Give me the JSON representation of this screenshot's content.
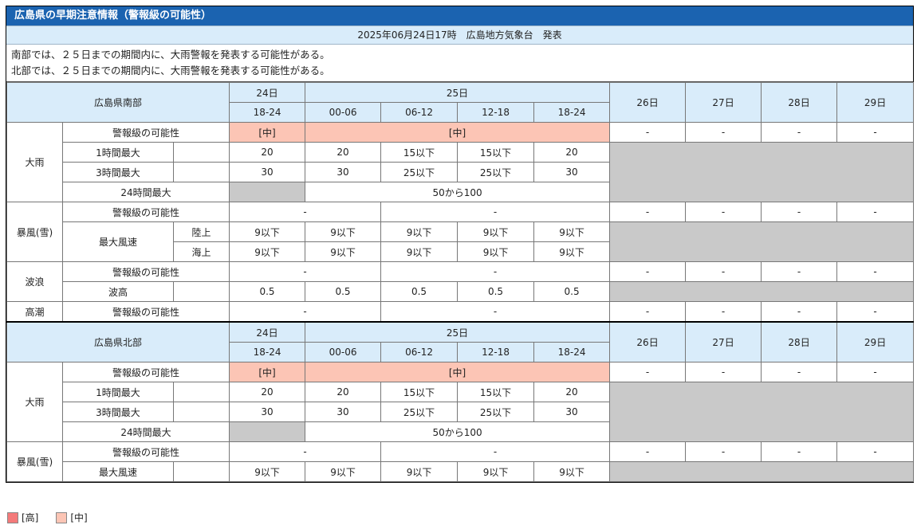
{
  "title": "広島県の早期注意情報（警報級の可能性）",
  "issued": "2025年06月24日17時　広島地方気象台　発表",
  "summary": [
    "南部では、２５日までの期間内に、大雨警報を発表する可能性がある。",
    "北部では、２５日までの期間内に、大雨警報を発表する可能性がある。"
  ],
  "header": {
    "day24": "24日",
    "day25": "25日",
    "day26": "26日",
    "day27": "27日",
    "day28": "28日",
    "day29": "29日",
    "slot1": "18-24",
    "slot2": "00-06",
    "slot3": "06-12",
    "slot4": "12-18",
    "slot5": "18-24"
  },
  "south": {
    "region": "広島県南部",
    "rain": {
      "label": "大雨",
      "possibility_label": "警報級の可能性",
      "possibility_24": "[中]",
      "possibility_25": "[中]",
      "h1_label": "1時間最大",
      "h1": [
        "20",
        "20",
        "15以下",
        "15以下",
        "20"
      ],
      "h3_label": "3時間最大",
      "h3": [
        "30",
        "30",
        "25以下",
        "25以下",
        "30"
      ],
      "h24_label": "24時間最大",
      "h24": "50から100",
      "later": [
        "-",
        "-",
        "-",
        "-"
      ]
    },
    "wind": {
      "label": "暴風(雪)",
      "possibility_label": "警報級の可能性",
      "possibility_24": "-",
      "possibility_25": "-",
      "speed_label": "最大風速",
      "land_label": "陸上",
      "land": [
        "9以下",
        "9以下",
        "9以下",
        "9以下",
        "9以下"
      ],
      "sea_label": "海上",
      "sea": [
        "9以下",
        "9以下",
        "9以下",
        "9以下",
        "9以下"
      ],
      "later": [
        "-",
        "-",
        "-",
        "-"
      ]
    },
    "wave": {
      "label": "波浪",
      "possibility_label": "警報級の可能性",
      "possibility_24": "-",
      "possibility_25": "-",
      "height_label": "波高",
      "height": [
        "0.5",
        "0.5",
        "0.5",
        "0.5",
        "0.5"
      ],
      "later": [
        "-",
        "-",
        "-",
        "-"
      ]
    },
    "tide": {
      "label": "高潮",
      "possibility_label": "警報級の可能性",
      "possibility_24": "-",
      "possibility_25": "-",
      "later": [
        "-",
        "-",
        "-",
        "-"
      ]
    }
  },
  "north": {
    "region": "広島県北部",
    "rain": {
      "label": "大雨",
      "possibility_label": "警報級の可能性",
      "possibility_24": "[中]",
      "possibility_25": "[中]",
      "h1_label": "1時間最大",
      "h1": [
        "20",
        "20",
        "15以下",
        "15以下",
        "20"
      ],
      "h3_label": "3時間最大",
      "h3": [
        "30",
        "30",
        "25以下",
        "25以下",
        "30"
      ],
      "h24_label": "24時間最大",
      "h24": "50から100",
      "later": [
        "-",
        "-",
        "-",
        "-"
      ]
    },
    "wind": {
      "label": "暴風(雪)",
      "possibility_label": "警報級の可能性",
      "possibility_24": "-",
      "possibility_25": "-",
      "speed_label": "最大風速",
      "speed": [
        "9以下",
        "9以下",
        "9以下",
        "9以下",
        "9以下"
      ],
      "later": [
        "-",
        "-",
        "-",
        "-"
      ]
    }
  },
  "legend": {
    "high_label": "[高]",
    "high_color": "#f47a7a",
    "mid_label": "[中]",
    "mid_color": "#fcc5b5"
  },
  "colors": {
    "title_bg": "#1b63b0",
    "header_bg": "#d9ecfa",
    "mid_bg": "#fcc5b5",
    "na_bg": "#c9c9c9"
  }
}
